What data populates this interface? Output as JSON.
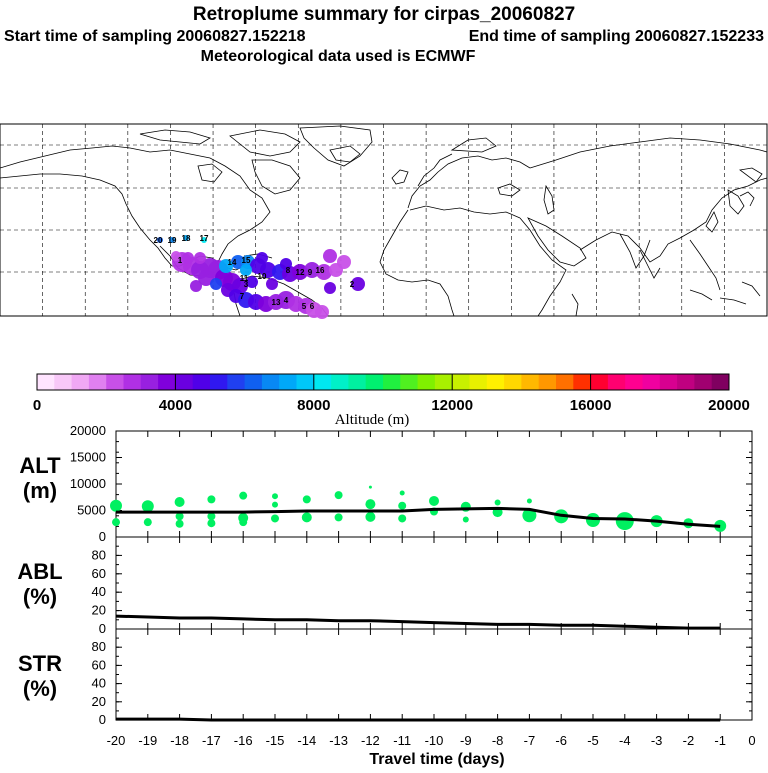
{
  "header": {
    "title": "Retroplume summary for cirpas_20060827",
    "start_label": "Start time of sampling 20060827.152218",
    "end_label": "End time of sampling 20060827.152233",
    "met_label": "Meteorological data used is ECMWF"
  },
  "colorbar": {
    "min": 0,
    "max": 20000,
    "ticks": [
      "0",
      "4000",
      "8000",
      "12000",
      "16000",
      "20000"
    ],
    "label": "Altitude (m)",
    "colors": [
      "#ffe4ff",
      "#f8c8f8",
      "#f0a8f4",
      "#e080f0",
      "#c850e8",
      "#b030e4",
      "#9820e0",
      "#8000dc",
      "#6a00e0",
      "#5000e8",
      "#3018f0",
      "#2040f0",
      "#1060f0",
      "#0888f4",
      "#00a8f8",
      "#00c8f8",
      "#00e8f0",
      "#00f0c8",
      "#00f0a0",
      "#00f070",
      "#20f040",
      "#50f020",
      "#80f000",
      "#a8f000",
      "#c8f000",
      "#e8f000",
      "#fff000",
      "#ffd800",
      "#ffb800",
      "#ff9800",
      "#ff7000",
      "#ff3000",
      "#ff0030",
      "#ff0070",
      "#ff0090",
      "#f000a0",
      "#d80090",
      "#c00080",
      "#a00070",
      "#800060"
    ]
  },
  "map": {
    "point_labels": [
      "1",
      "2",
      "3",
      "4",
      "5",
      "6",
      "7",
      "8",
      "9",
      "10",
      "11",
      "12",
      "13",
      "14",
      "15",
      "16",
      "17",
      "18",
      "19",
      "20"
    ]
  },
  "chart_data": [
    {
      "type": "scatter",
      "name": "altitude",
      "ylabel": "ALT",
      "yunits": "(m)",
      "ylim": [
        0,
        20000
      ],
      "yticks": [
        "0",
        "5000",
        "10000",
        "15000",
        "20000"
      ],
      "x": [
        -20,
        -19,
        -18,
        -17,
        -16,
        -15,
        -14,
        -13,
        -12,
        -11,
        -10,
        -9,
        -8,
        -7,
        -6,
        -5,
        -4,
        -3,
        -2,
        -1
      ],
      "line_x": [
        -20,
        -19,
        -18,
        -17,
        -16,
        -15,
        -14,
        -13,
        -12,
        -11,
        -10,
        -9,
        -8,
        -7,
        -6,
        -5,
        -4,
        -3,
        -2,
        -1
      ],
      "line_y": [
        4700,
        4700,
        4700,
        4700,
        4700,
        4800,
        4900,
        4900,
        4900,
        4900,
        5200,
        5300,
        5400,
        5200,
        4100,
        3500,
        3400,
        3000,
        2400,
        2000
      ],
      "points": [
        {
          "x": -20,
          "y": 5900,
          "s": 6
        },
        {
          "x": -20,
          "y": 2800,
          "s": 4
        },
        {
          "x": -19,
          "y": 5800,
          "s": 6
        },
        {
          "x": -19,
          "y": 2800,
          "s": 4
        },
        {
          "x": -18,
          "y": 6600,
          "s": 5
        },
        {
          "x": -18,
          "y": 3900,
          "s": 4
        },
        {
          "x": -18,
          "y": 2500,
          "s": 4
        },
        {
          "x": -17,
          "y": 7100,
          "s": 4
        },
        {
          "x": -17,
          "y": 3900,
          "s": 4
        },
        {
          "x": -17,
          "y": 2600,
          "s": 4
        },
        {
          "x": -16,
          "y": 7800,
          "s": 4
        },
        {
          "x": -16,
          "y": 3600,
          "s": 5
        },
        {
          "x": -16,
          "y": 2800,
          "s": 4
        },
        {
          "x": -15,
          "y": 7700,
          "s": 3
        },
        {
          "x": -15,
          "y": 6100,
          "s": 3
        },
        {
          "x": -15,
          "y": 3500,
          "s": 4
        },
        {
          "x": -14,
          "y": 7100,
          "s": 4
        },
        {
          "x": -14,
          "y": 3700,
          "s": 5
        },
        {
          "x": -13,
          "y": 7900,
          "s": 4
        },
        {
          "x": -13,
          "y": 3700,
          "s": 4
        },
        {
          "x": -12,
          "y": 9400,
          "s": 1.5
        },
        {
          "x": -12,
          "y": 6200,
          "s": 5
        },
        {
          "x": -12,
          "y": 3800,
          "s": 5
        },
        {
          "x": -11,
          "y": 8300,
          "s": 2.5
        },
        {
          "x": -11,
          "y": 5900,
          "s": 4
        },
        {
          "x": -11,
          "y": 3500,
          "s": 4
        },
        {
          "x": -10,
          "y": 6800,
          "s": 5
        },
        {
          "x": -10,
          "y": 4800,
          "s": 4
        },
        {
          "x": -9,
          "y": 5700,
          "s": 5
        },
        {
          "x": -9,
          "y": 3300,
          "s": 3
        },
        {
          "x": -8,
          "y": 6500,
          "s": 3
        },
        {
          "x": -8,
          "y": 4700,
          "s": 5
        },
        {
          "x": -7,
          "y": 6800,
          "s": 2.5
        },
        {
          "x": -7,
          "y": 4100,
          "s": 7
        },
        {
          "x": -6,
          "y": 3900,
          "s": 7
        },
        {
          "x": -5,
          "y": 3200,
          "s": 7
        },
        {
          "x": -4,
          "y": 3000,
          "s": 9
        },
        {
          "x": -3,
          "y": 3000,
          "s": 6
        },
        {
          "x": -2,
          "y": 2600,
          "s": 5
        },
        {
          "x": -1,
          "y": 2100,
          "s": 6
        }
      ],
      "point_color": "#00f060"
    },
    {
      "type": "line",
      "name": "abl",
      "ylabel": "ABL",
      "yunits": "(%)",
      "ylim": [
        0,
        100
      ],
      "yticks": [
        "0",
        "20",
        "40",
        "60",
        "80"
      ],
      "x": [
        -20,
        -19,
        -18,
        -17,
        -16,
        -15,
        -14,
        -13,
        -12,
        -11,
        -10,
        -9,
        -8,
        -7,
        -6,
        -5,
        -4,
        -3,
        -2,
        -1
      ],
      "values": [
        14,
        13,
        12,
        12,
        11,
        10,
        10,
        9,
        9,
        8,
        7,
        6,
        5,
        5,
        4,
        4,
        3,
        2,
        1,
        1
      ]
    },
    {
      "type": "line",
      "name": "str",
      "ylabel": "STR",
      "yunits": "(%)",
      "ylim": [
        0,
        100
      ],
      "yticks": [
        "0",
        "20",
        "40",
        "60",
        "80"
      ],
      "x": [
        -20,
        -19,
        -18,
        -17,
        -16,
        -15,
        -14,
        -13,
        -12,
        -11,
        -10,
        -9,
        -8,
        -7,
        -6,
        -5,
        -4,
        -3,
        -2,
        -1
      ],
      "values": [
        1,
        1,
        1,
        0,
        0,
        0,
        0,
        0,
        0,
        0,
        0,
        0,
        0,
        0,
        0,
        0,
        0,
        0,
        0,
        0
      ]
    }
  ],
  "xaxis": {
    "label": "Travel time (days)",
    "ticks": [
      "-20",
      "-19",
      "-18",
      "-17",
      "-16",
      "-15",
      "-14",
      "-13",
      "-12",
      "-11",
      "-10",
      "-9",
      "-8",
      "-7",
      "-6",
      "-5",
      "-4",
      "-3",
      "-2",
      "-1",
      "0"
    ]
  }
}
